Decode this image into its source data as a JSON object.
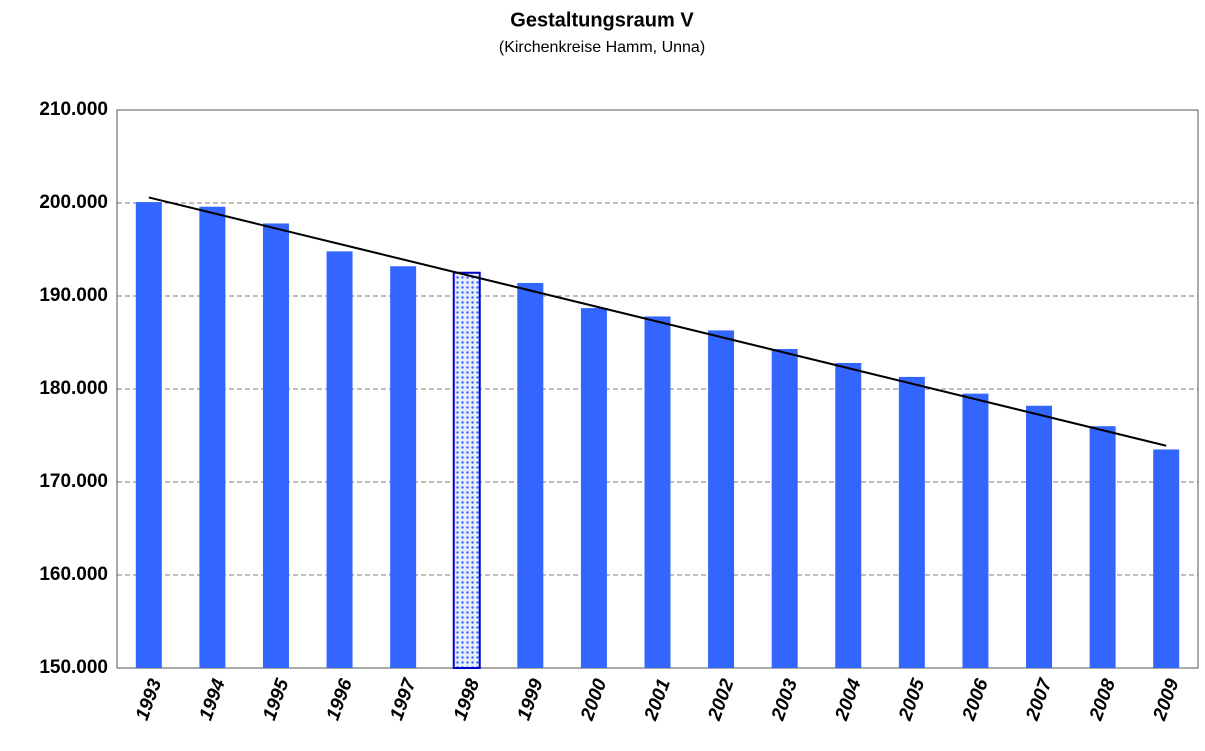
{
  "chart_data": {
    "type": "bar",
    "title": "Gestaltungsraum V",
    "subtitle": "(Kirchenkreise Hamm, Unna)",
    "categories": [
      "1993",
      "1994",
      "1995",
      "1996",
      "1997",
      "1998",
      "1999",
      "2000",
      "2001",
      "2002",
      "2003",
      "2004",
      "2005",
      "2006",
      "2007",
      "2008",
      "2009"
    ],
    "values": [
      200100,
      199600,
      197800,
      194800,
      193200,
      192500,
      191400,
      188700,
      187800,
      186300,
      184300,
      182800,
      181300,
      179500,
      178200,
      176000,
      173500
    ],
    "color": "#3366ff",
    "highlight_index": 5,
    "trendline": {
      "color": "#000000",
      "values": [
        200600,
        173900
      ]
    },
    "ylim": [
      150000,
      210000
    ],
    "yticks": [
      {
        "value": 150000,
        "label": "150.000"
      },
      {
        "value": 160000,
        "label": "160.000"
      },
      {
        "value": 170000,
        "label": "170.000"
      },
      {
        "value": 180000,
        "label": "180.000"
      },
      {
        "value": 190000,
        "label": "190.000"
      },
      {
        "value": 200000,
        "label": "200.000"
      },
      {
        "value": 210000,
        "label": "210.000"
      }
    ],
    "grid": true
  }
}
